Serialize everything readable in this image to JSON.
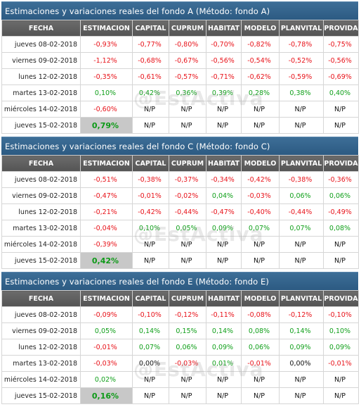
{
  "columns": [
    "FECHA",
    "ESTIMACION",
    "CAPITAL",
    "CUPRUM",
    "HABITAT",
    "MODELO",
    "PLANVITAL",
    "PROVIDA"
  ],
  "watermark": "@EstActiva",
  "panels": [
    {
      "title": "Estimaciones y variaciones reales del fondo A (Método: fondo A)",
      "rows": [
        {
          "fecha": "jueves 08-02-2018",
          "vals": [
            "-0,93%",
            "-0,77%",
            "-0,80%",
            "-0,70%",
            "-0,82%",
            "-0,78%",
            "-0,75%"
          ]
        },
        {
          "fecha": "viernes 09-02-2018",
          "vals": [
            "-1,12%",
            "-0,68%",
            "-0,67%",
            "-0,56%",
            "-0,54%",
            "-0,52%",
            "-0,56%"
          ]
        },
        {
          "fecha": "lunes 12-02-2018",
          "vals": [
            "-0,35%",
            "-0,61%",
            "-0,57%",
            "-0,71%",
            "-0,62%",
            "-0,59%",
            "-0,69%"
          ]
        },
        {
          "fecha": "martes 13-02-2018",
          "vals": [
            "0,10%",
            "0,42%",
            "0,36%",
            "0,39%",
            "0,28%",
            "0,38%",
            "0,40%"
          ]
        },
        {
          "fecha": "miércoles 14-02-2018",
          "vals": [
            "-0,60%",
            "N/P",
            "N/P",
            "N/P",
            "N/P",
            "N/P",
            "N/P"
          ]
        },
        {
          "fecha": "jueves 15-02-2018",
          "vals": [
            "0,79%",
            "N/P",
            "N/P",
            "N/P",
            "N/P",
            "N/P",
            "N/P"
          ]
        }
      ]
    },
    {
      "title": "Estimaciones y variaciones reales del fondo C (Método: fondo C)",
      "rows": [
        {
          "fecha": "jueves 08-02-2018",
          "vals": [
            "-0,51%",
            "-0,38%",
            "-0,37%",
            "-0,34%",
            "-0,42%",
            "-0,38%",
            "-0,36%"
          ]
        },
        {
          "fecha": "viernes 09-02-2018",
          "vals": [
            "-0,47%",
            "-0,01%",
            "-0,02%",
            "0,04%",
            "-0,03%",
            "0,06%",
            "0,06%"
          ]
        },
        {
          "fecha": "lunes 12-02-2018",
          "vals": [
            "-0,21%",
            "-0,42%",
            "-0,44%",
            "-0,47%",
            "-0,40%",
            "-0,44%",
            "-0,49%"
          ]
        },
        {
          "fecha": "martes 13-02-2018",
          "vals": [
            "-0,04%",
            "0,10%",
            "0,05%",
            "0,09%",
            "0,07%",
            "0,07%",
            "0,08%"
          ]
        },
        {
          "fecha": "miércoles 14-02-2018",
          "vals": [
            "-0,39%",
            "N/P",
            "N/P",
            "N/P",
            "N/P",
            "N/P",
            "N/P"
          ]
        },
        {
          "fecha": "jueves 15-02-2018",
          "vals": [
            "0,42%",
            "N/P",
            "N/P",
            "N/P",
            "N/P",
            "N/P",
            "N/P"
          ]
        }
      ]
    },
    {
      "title": "Estimaciones y variaciones reales del fondo E (Método: fondo E)",
      "rows": [
        {
          "fecha": "jueves 08-02-2018",
          "vals": [
            "-0,09%",
            "-0,10%",
            "-0,12%",
            "-0,11%",
            "-0,08%",
            "-0,12%",
            "-0,10%"
          ]
        },
        {
          "fecha": "viernes 09-02-2018",
          "vals": [
            "0,05%",
            "0,14%",
            "0,15%",
            "0,14%",
            "0,08%",
            "0,14%",
            "0,10%"
          ]
        },
        {
          "fecha": "lunes 12-02-2018",
          "vals": [
            "-0,01%",
            "0,07%",
            "0,06%",
            "0,09%",
            "0,06%",
            "0,09%",
            "0,09%"
          ]
        },
        {
          "fecha": "martes 13-02-2018",
          "vals": [
            "-0,03%",
            "0,00%",
            "-0,03%",
            "0,01%",
            "-0,01%",
            "0,00%",
            "-0,01%"
          ]
        },
        {
          "fecha": "miércoles 14-02-2018",
          "vals": [
            "0,02%",
            "N/P",
            "N/P",
            "N/P",
            "N/P",
            "N/P",
            "N/P"
          ]
        },
        {
          "fecha": "jueves 15-02-2018",
          "vals": [
            "0,16%",
            "N/P",
            "N/P",
            "N/P",
            "N/P",
            "N/P",
            "N/P"
          ]
        }
      ]
    }
  ]
}
